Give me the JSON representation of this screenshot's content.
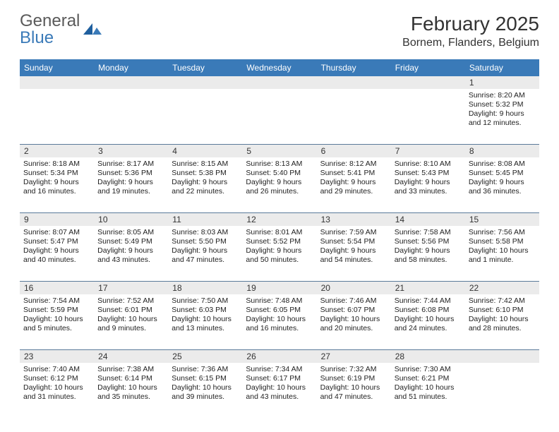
{
  "logo": {
    "line1": "General",
    "line2": "Blue",
    "line1_color": "#5a5a5a",
    "line2_color": "#3a7ab8",
    "icon_color": "#1f5f9e"
  },
  "header": {
    "month_title": "February 2025",
    "location": "Bornem, Flanders, Belgium"
  },
  "styling": {
    "header_bg": "#3a7ab8",
    "header_text_color": "#ffffff",
    "daynum_bg": "#ebebeb",
    "divider_color": "#5a7a9a",
    "body_text_color": "#222222",
    "page_bg": "#ffffff",
    "dow_fontsize": 12,
    "daynum_fontsize": 12,
    "detail_fontsize": 10.5
  },
  "days_of_week": [
    "Sunday",
    "Monday",
    "Tuesday",
    "Wednesday",
    "Thursday",
    "Friday",
    "Saturday"
  ],
  "weeks": [
    [
      {
        "n": "",
        "sunrise": "",
        "sunset": "",
        "daylight": ""
      },
      {
        "n": "",
        "sunrise": "",
        "sunset": "",
        "daylight": ""
      },
      {
        "n": "",
        "sunrise": "",
        "sunset": "",
        "daylight": ""
      },
      {
        "n": "",
        "sunrise": "",
        "sunset": "",
        "daylight": ""
      },
      {
        "n": "",
        "sunrise": "",
        "sunset": "",
        "daylight": ""
      },
      {
        "n": "",
        "sunrise": "",
        "sunset": "",
        "daylight": ""
      },
      {
        "n": "1",
        "sunrise": "Sunrise: 8:20 AM",
        "sunset": "Sunset: 5:32 PM",
        "daylight": "Daylight: 9 hours and 12 minutes."
      }
    ],
    [
      {
        "n": "2",
        "sunrise": "Sunrise: 8:18 AM",
        "sunset": "Sunset: 5:34 PM",
        "daylight": "Daylight: 9 hours and 16 minutes."
      },
      {
        "n": "3",
        "sunrise": "Sunrise: 8:17 AM",
        "sunset": "Sunset: 5:36 PM",
        "daylight": "Daylight: 9 hours and 19 minutes."
      },
      {
        "n": "4",
        "sunrise": "Sunrise: 8:15 AM",
        "sunset": "Sunset: 5:38 PM",
        "daylight": "Daylight: 9 hours and 22 minutes."
      },
      {
        "n": "5",
        "sunrise": "Sunrise: 8:13 AM",
        "sunset": "Sunset: 5:40 PM",
        "daylight": "Daylight: 9 hours and 26 minutes."
      },
      {
        "n": "6",
        "sunrise": "Sunrise: 8:12 AM",
        "sunset": "Sunset: 5:41 PM",
        "daylight": "Daylight: 9 hours and 29 minutes."
      },
      {
        "n": "7",
        "sunrise": "Sunrise: 8:10 AM",
        "sunset": "Sunset: 5:43 PM",
        "daylight": "Daylight: 9 hours and 33 minutes."
      },
      {
        "n": "8",
        "sunrise": "Sunrise: 8:08 AM",
        "sunset": "Sunset: 5:45 PM",
        "daylight": "Daylight: 9 hours and 36 minutes."
      }
    ],
    [
      {
        "n": "9",
        "sunrise": "Sunrise: 8:07 AM",
        "sunset": "Sunset: 5:47 PM",
        "daylight": "Daylight: 9 hours and 40 minutes."
      },
      {
        "n": "10",
        "sunrise": "Sunrise: 8:05 AM",
        "sunset": "Sunset: 5:49 PM",
        "daylight": "Daylight: 9 hours and 43 minutes."
      },
      {
        "n": "11",
        "sunrise": "Sunrise: 8:03 AM",
        "sunset": "Sunset: 5:50 PM",
        "daylight": "Daylight: 9 hours and 47 minutes."
      },
      {
        "n": "12",
        "sunrise": "Sunrise: 8:01 AM",
        "sunset": "Sunset: 5:52 PM",
        "daylight": "Daylight: 9 hours and 50 minutes."
      },
      {
        "n": "13",
        "sunrise": "Sunrise: 7:59 AM",
        "sunset": "Sunset: 5:54 PM",
        "daylight": "Daylight: 9 hours and 54 minutes."
      },
      {
        "n": "14",
        "sunrise": "Sunrise: 7:58 AM",
        "sunset": "Sunset: 5:56 PM",
        "daylight": "Daylight: 9 hours and 58 minutes."
      },
      {
        "n": "15",
        "sunrise": "Sunrise: 7:56 AM",
        "sunset": "Sunset: 5:58 PM",
        "daylight": "Daylight: 10 hours and 1 minute."
      }
    ],
    [
      {
        "n": "16",
        "sunrise": "Sunrise: 7:54 AM",
        "sunset": "Sunset: 5:59 PM",
        "daylight": "Daylight: 10 hours and 5 minutes."
      },
      {
        "n": "17",
        "sunrise": "Sunrise: 7:52 AM",
        "sunset": "Sunset: 6:01 PM",
        "daylight": "Daylight: 10 hours and 9 minutes."
      },
      {
        "n": "18",
        "sunrise": "Sunrise: 7:50 AM",
        "sunset": "Sunset: 6:03 PM",
        "daylight": "Daylight: 10 hours and 13 minutes."
      },
      {
        "n": "19",
        "sunrise": "Sunrise: 7:48 AM",
        "sunset": "Sunset: 6:05 PM",
        "daylight": "Daylight: 10 hours and 16 minutes."
      },
      {
        "n": "20",
        "sunrise": "Sunrise: 7:46 AM",
        "sunset": "Sunset: 6:07 PM",
        "daylight": "Daylight: 10 hours and 20 minutes."
      },
      {
        "n": "21",
        "sunrise": "Sunrise: 7:44 AM",
        "sunset": "Sunset: 6:08 PM",
        "daylight": "Daylight: 10 hours and 24 minutes."
      },
      {
        "n": "22",
        "sunrise": "Sunrise: 7:42 AM",
        "sunset": "Sunset: 6:10 PM",
        "daylight": "Daylight: 10 hours and 28 minutes."
      }
    ],
    [
      {
        "n": "23",
        "sunrise": "Sunrise: 7:40 AM",
        "sunset": "Sunset: 6:12 PM",
        "daylight": "Daylight: 10 hours and 31 minutes."
      },
      {
        "n": "24",
        "sunrise": "Sunrise: 7:38 AM",
        "sunset": "Sunset: 6:14 PM",
        "daylight": "Daylight: 10 hours and 35 minutes."
      },
      {
        "n": "25",
        "sunrise": "Sunrise: 7:36 AM",
        "sunset": "Sunset: 6:15 PM",
        "daylight": "Daylight: 10 hours and 39 minutes."
      },
      {
        "n": "26",
        "sunrise": "Sunrise: 7:34 AM",
        "sunset": "Sunset: 6:17 PM",
        "daylight": "Daylight: 10 hours and 43 minutes."
      },
      {
        "n": "27",
        "sunrise": "Sunrise: 7:32 AM",
        "sunset": "Sunset: 6:19 PM",
        "daylight": "Daylight: 10 hours and 47 minutes."
      },
      {
        "n": "28",
        "sunrise": "Sunrise: 7:30 AM",
        "sunset": "Sunset: 6:21 PM",
        "daylight": "Daylight: 10 hours and 51 minutes."
      },
      {
        "n": "",
        "sunrise": "",
        "sunset": "",
        "daylight": ""
      }
    ]
  ]
}
